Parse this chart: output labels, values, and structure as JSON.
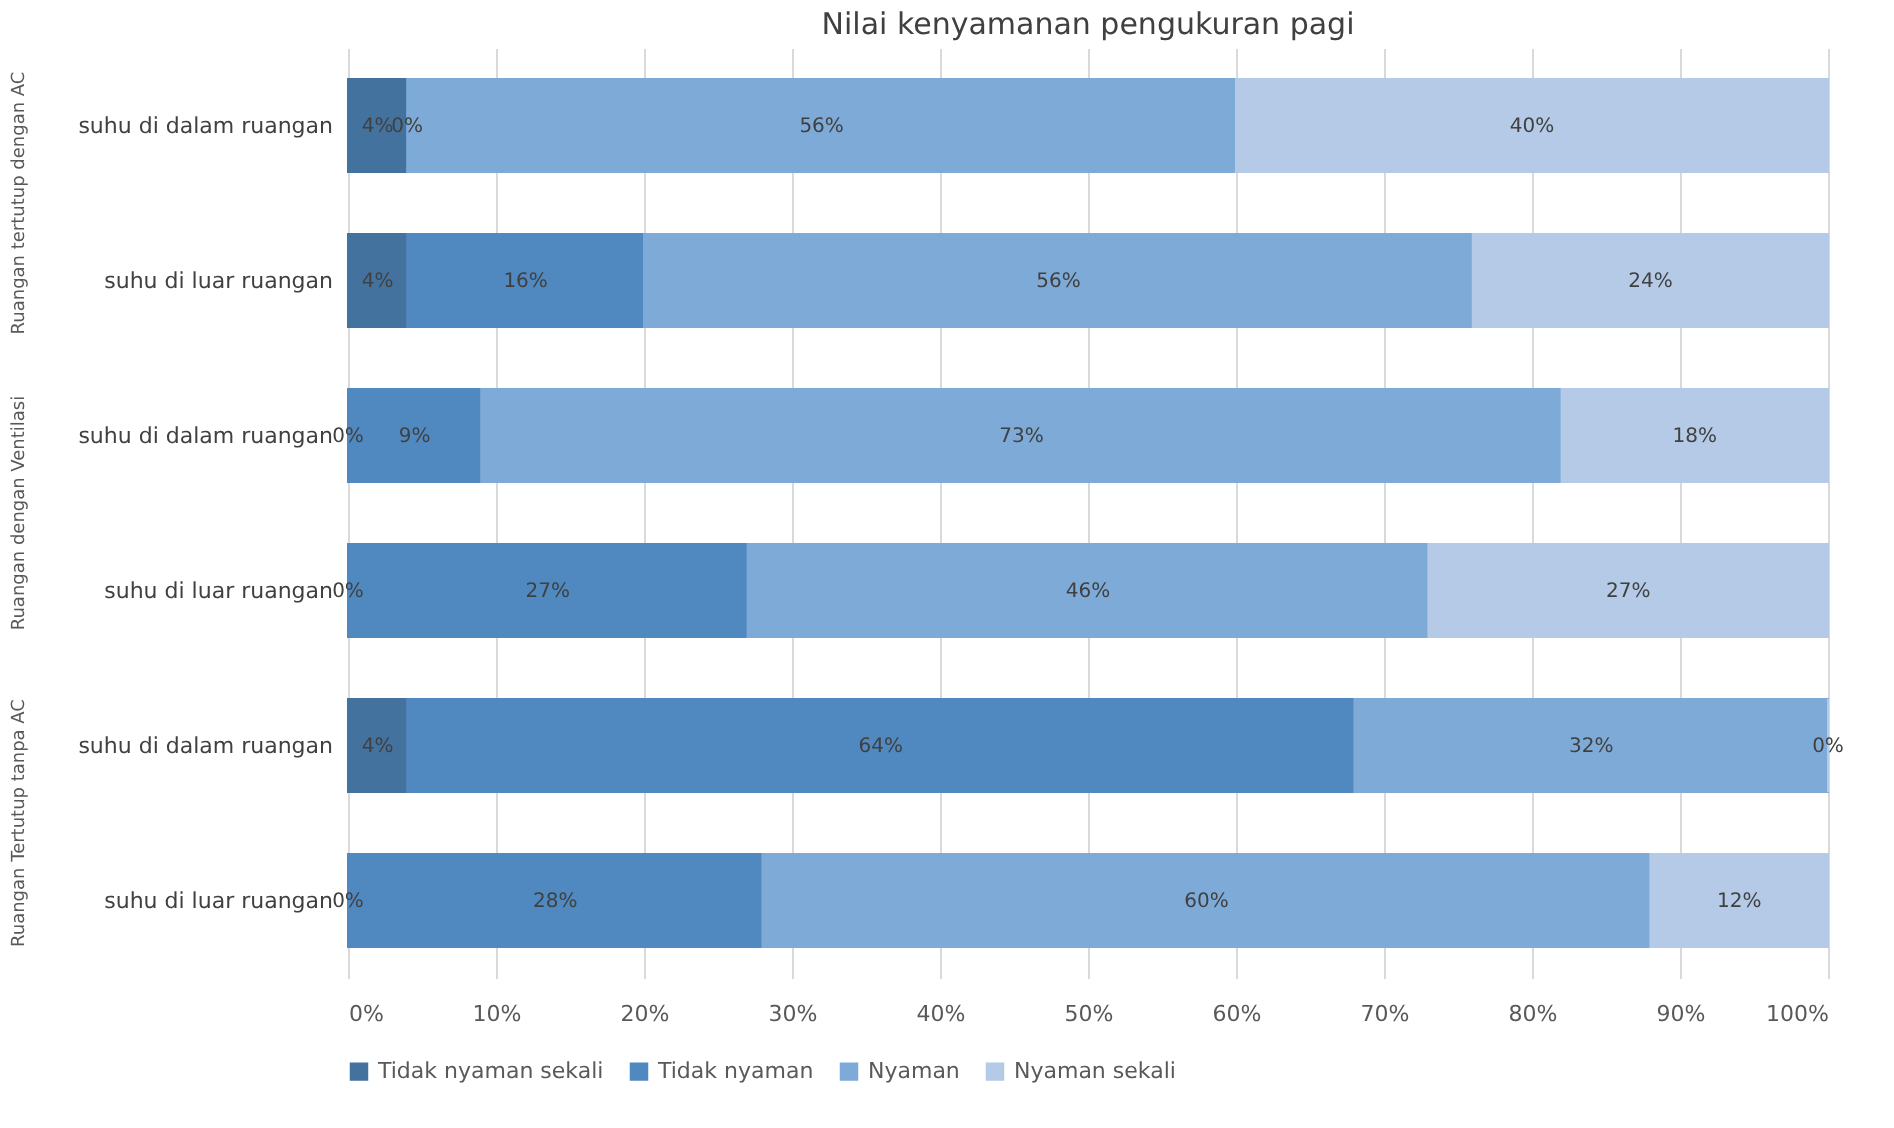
{
  "chart_data": {
    "type": "bar",
    "orientation": "horizontal",
    "stacked": true,
    "title": "Nilai kenyamanan pengukuran pagi",
    "categories": [
      "suhu di dalam ruangan",
      "suhu di luar ruangan",
      "suhu di dalam ruangan",
      "suhu di luar ruangan",
      "suhu di dalam ruangan",
      "suhu di luar ruangan"
    ],
    "series": [
      {
        "name": "Tidak nyaman sekali",
        "color": "#44729f",
        "values": [
          4,
          4,
          0,
          0,
          4,
          0
        ],
        "value_labels": [
          "4%",
          "4%",
          "0%",
          "0%",
          "4%",
          "0%"
        ]
      },
      {
        "name": "Tidak nyaman",
        "color": "#5088c0",
        "values": [
          0,
          16,
          9,
          27,
          64,
          28
        ],
        "value_labels": [
          "0%",
          "16%",
          "9%",
          "27%",
          "64%",
          "28%"
        ]
      },
      {
        "name": "Nyaman",
        "color": "#7eaad8",
        "values": [
          56,
          56,
          73,
          46,
          32,
          60
        ],
        "value_labels": [
          "56%",
          "56%",
          "73%",
          "46%",
          "32%",
          "60%"
        ]
      },
      {
        "name": "Nyaman sekali",
        "color": "#b4cae6",
        "values": [
          40,
          24,
          18,
          27,
          0,
          12
        ],
        "value_labels": [
          "40%",
          "24%",
          "18%",
          "27%",
          "0%",
          "12%"
        ]
      }
    ],
    "annotations": [
      "Ruangan tertutup dengan AC",
      "Ruangan dengan Ventilasi",
      "Ruangan Tertutup tanpa AC"
    ],
    "xlim": [
      0,
      100
    ],
    "xticks": [
      {
        "value": 0,
        "label": "0%"
      },
      {
        "value": 10,
        "label": "10%"
      },
      {
        "value": 20,
        "label": "20%"
      },
      {
        "value": 30,
        "label": "30%"
      },
      {
        "value": 40,
        "label": "40%"
      },
      {
        "value": 50,
        "label": "50%"
      },
      {
        "value": 60,
        "label": "60%"
      },
      {
        "value": 70,
        "label": "70%"
      },
      {
        "value": 80,
        "label": "80%"
      },
      {
        "value": 90,
        "label": "90%"
      },
      {
        "value": 100,
        "label": "100%"
      }
    ],
    "grid": "x",
    "legend": "bottom"
  }
}
